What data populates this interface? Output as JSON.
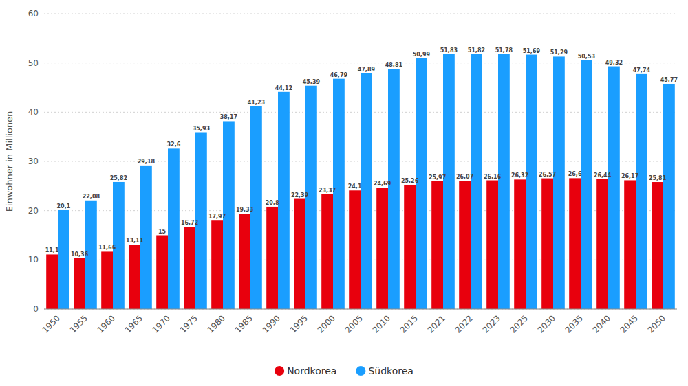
{
  "chart_data": {
    "type": "bar",
    "y_label": "Einwohner in Millionen",
    "categories": [
      "1950",
      "1955",
      "1960",
      "1965",
      "1970",
      "1975",
      "1980",
      "1985",
      "1990",
      "1995",
      "2000",
      "2005",
      "2010",
      "2015",
      "2021",
      "2022",
      "2023",
      "2025",
      "2030",
      "2035",
      "2040",
      "2045",
      "2050"
    ],
    "series": [
      {
        "name": "Nordkorea",
        "color": "#e8000d",
        "values": [
          11.1,
          10.36,
          11.66,
          13.11,
          15,
          16.72,
          17.97,
          19.33,
          20.8,
          22.39,
          23.37,
          24.1,
          24.69,
          25.26,
          25.97,
          26.07,
          26.16,
          26.32,
          26.57,
          26.6,
          26.44,
          26.17,
          25.81
        ],
        "value_labels": [
          "11,1",
          "10,36",
          "11,66",
          "13,11",
          "15",
          "16,72",
          "17,97",
          "19,33",
          "20,8",
          "22,39",
          "23,37",
          "24,1",
          "24,69",
          "25,26",
          "25,97",
          "26,07",
          "26,16",
          "26,32",
          "26,57",
          "26,6",
          "26,44",
          "26,17",
          "25,81"
        ]
      },
      {
        "name": "Südkorea",
        "color": "#1a9eff",
        "values": [
          20.1,
          22.08,
          25.82,
          29.18,
          32.6,
          35.93,
          38.17,
          41.23,
          44.12,
          45.39,
          46.79,
          47.89,
          48.81,
          50.99,
          51.83,
          51.82,
          51.78,
          51.69,
          51.29,
          50.53,
          49.32,
          47.74,
          45.77
        ],
        "value_labels": [
          "20,1",
          "22,08",
          "25,82",
          "29,18",
          "32,6",
          "35,93",
          "38,17",
          "41,23",
          "44,12",
          "45,39",
          "46,79",
          "47,89",
          "48,81",
          "50,99",
          "51,83",
          "51,82",
          "51,78",
          "51,69",
          "51,29",
          "50,53",
          "49,32",
          "47,74",
          "45,77"
        ]
      }
    ],
    "ylim": [
      0,
      60
    ],
    "yticks": [
      0,
      10,
      20,
      30,
      40,
      50,
      60
    ],
    "grid": true,
    "legend": "bottom",
    "data_labels": true
  }
}
